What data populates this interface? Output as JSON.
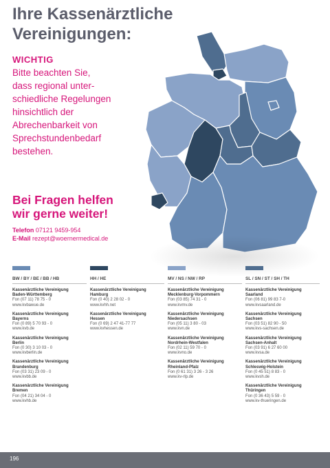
{
  "title": {
    "line1": "Ihre Kassenärztliche",
    "line2": "Vereinigungen:"
  },
  "important": {
    "heading": "WICHTIG",
    "lines": [
      "Bitte beachten Sie,",
      "dass regional unter-",
      "schiedliche Regelungen",
      "hinsichtlich der",
      "Abrechenbarkeit von",
      "Sprechstundenbedarf",
      "bestehen."
    ]
  },
  "contact": {
    "cta": [
      "Bei Fragen helfen",
      "wir gerne weiter!"
    ],
    "phone_label": "Telefon",
    "phone": "07121 9459-954",
    "email_label": "E-Mail",
    "email": "rezept@woernermedical.de"
  },
  "colors": {
    "accent": "#d6157a",
    "dark": "#2e4760",
    "mid": "#4f6d8f",
    "light": "#8aa3c8",
    "footer": "#6b6e76"
  },
  "columns": [
    {
      "bar_color": "#6a8bb4",
      "header": "BW / BY / BE / BB / HB",
      "entries": [
        {
          "n1": "Kassenärztliche Vereinigung",
          "n2": "Baden-Württemberg",
          "fon": "Fon (07 11) 78 75 - 0",
          "web": "www.kvbawue.de"
        },
        {
          "n1": "Kassenärztliche Vereinigung",
          "n2": "Bayerns",
          "fon": "Fon (0 89) 5 70 93 - 0",
          "web": "www.kvb.de"
        },
        {
          "n1": "Kassenärztliche Vereinigung",
          "n2": "Berlin",
          "fon": "Fon (0 30) 3 10 03 - 0",
          "web": "www.kvberlin.de"
        },
        {
          "n1": "Kassenärztliche Vereinigung",
          "n2": "Brandenburg",
          "fon": "Fon (03 31) 23 09 - 0",
          "web": "www.kvbb.de"
        },
        {
          "n1": "Kassenärztliche Vereinigung",
          "n2": "Bremen",
          "fon": "Fon (04 21) 34 04 - 0",
          "web": "www.kvhb.de"
        }
      ]
    },
    {
      "bar_color": "#2e4760",
      "header": "HH / HE",
      "entries": [
        {
          "n1": "Kassenärztliche Vereinigung",
          "n2": "Hamburg",
          "fon": "Fon (0 40) 2 28 02 - 0",
          "web": "www.kvhh.net"
        },
        {
          "n1": "Kassenärztliche Vereinigung",
          "n2": "Hessen",
          "fon": "Fon (0 69) 2 47 41-77 77",
          "web": "www.kvhessen.de"
        }
      ]
    },
    {
      "bar_color": "#8aa3c8",
      "header": "MV / NS / NW / RP",
      "entries": [
        {
          "n1": "Kassenärztliche Vereinigung",
          "n2": "Mecklenburg-Vorpommern",
          "fon": "Fon (03 85) 74 31 - 0",
          "web": "www.kvmv.de"
        },
        {
          "n1": "Kassenärztliche Vereinigung",
          "n2": "Niedersachsen",
          "fon": "Fon (05 11) 3 80 - 03",
          "web": "www.kvn.de"
        },
        {
          "n1": "Kassenärztliche Vereinigung",
          "n2": "Nordrhein-Westfalen",
          "fon": "Fon (02 11) 59 70 - 0",
          "web": "www.kvno.de"
        },
        {
          "n1": "Kassenärztliche Vereinigung",
          "n2": "Rheinland-Pfalz",
          "fon": "Fon (0 61 31) 3 26 - 3 26",
          "web": "www.kv-rlp.de"
        }
      ]
    },
    {
      "bar_color": "#4f6d8f",
      "header": "SL / SN / ST / SH / TH",
      "entries": [
        {
          "n1": "Kassenärztliche Vereinigung",
          "n2": "Saarland",
          "fon": "Fon (06 81) 99 83 7-0",
          "web": "www.kvsaarland.de"
        },
        {
          "n1": "Kassenärztliche Vereinigung",
          "n2": "Sachsen",
          "fon": "Fon (03 51) 82 90 - 50",
          "web": "www.kvs-sachsen.de"
        },
        {
          "n1": "Kassenärztliche Vereinigung",
          "n2": "Sachsen-Anhalt",
          "fon": "Fon (03 91) 6 27 60 00",
          "web": "www.kvsa.de"
        },
        {
          "n1": "Kassenärztliche Vereinigung",
          "n2": "Schleswig-Holstein",
          "fon": "Fon (0 45 51) 8 83 - 0",
          "web": "www.kvsh.de"
        },
        {
          "n1": "Kassenärztliche Vereinigung",
          "n2": "Thüringen",
          "fon": "Fon (0 36 43) 5 59 - 0",
          "web": "www.kv-thueringen.de"
        }
      ]
    }
  ],
  "footer": {
    "page_number": "196"
  }
}
